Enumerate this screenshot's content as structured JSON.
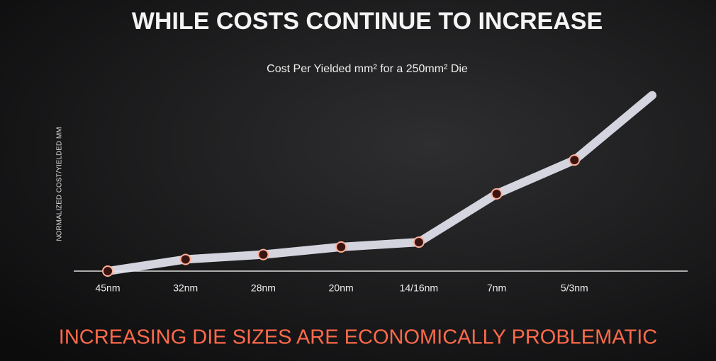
{
  "chart_data": {
    "type": "line",
    "title": "WHILE COSTS CONTINUE TO INCREASE",
    "subtitle": "Cost Per Yielded mm² for a 250mm² Die",
    "y_label": "NORMALIZED COST/YIELDED MM",
    "footer": "INCREASING DIE SIZES ARE ECONOMICALLY PROBLEMATIC",
    "categories": [
      "45nm",
      "32nm",
      "28nm",
      "20nm",
      "14/16nm",
      "7nm",
      "5/3nm",
      null
    ],
    "series": [
      {
        "name": null,
        "color": "#e4e4f0",
        "values": [
          0,
          17,
          24,
          35,
          42,
          112,
          161,
          255
        ]
      }
    ],
    "ylim": [
      0,
      270
    ]
  }
}
